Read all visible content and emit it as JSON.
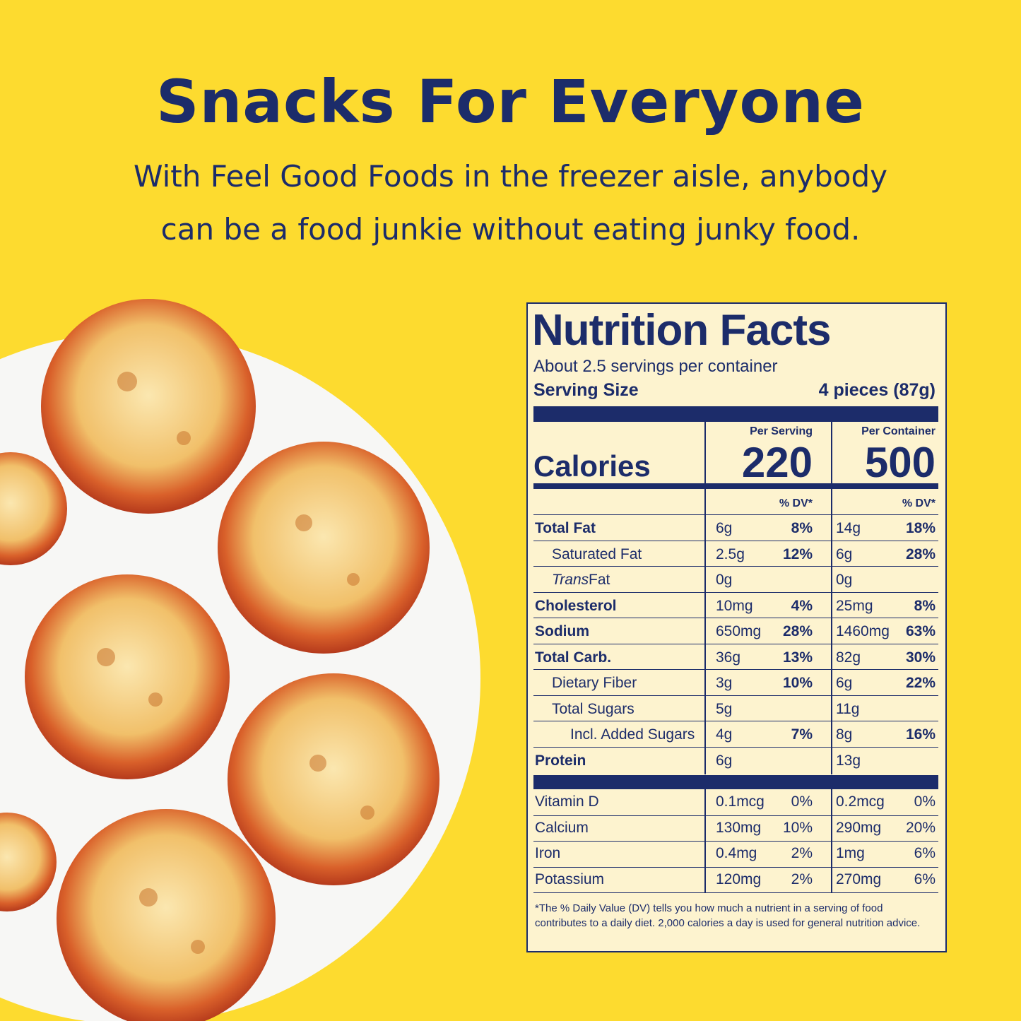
{
  "header": {
    "title": "Snacks For Everyone",
    "subtitle_lines": [
      "With Feel Good Foods in the freezer aisle, anybody",
      "can be a food junkie without eating junky food."
    ]
  },
  "nutrition": {
    "title": "Nutrition Facts",
    "servings": "About 2.5 servings per container",
    "serving_size_label": "Serving Size",
    "serving_size": "4 pieces (87g)",
    "column_headers": [
      "Per Serving",
      "Per Container"
    ],
    "calories_label": "Calories",
    "calories": [
      "220",
      "500"
    ],
    "dv_headers": [
      "% DV*",
      "% DV*"
    ],
    "rows": [
      {
        "name": "Total Fat",
        "style": "bold",
        "values": [
          "6g",
          "8%",
          "14g",
          "18%"
        ]
      },
      {
        "name": "Saturated Fat",
        "style": "sub",
        "values": [
          "2.5g",
          "12%",
          "6g",
          "28%"
        ]
      },
      {
        "name_italic": "Trans",
        "name": " Fat",
        "style": "sub",
        "values": [
          "0g",
          null,
          "0g",
          null
        ]
      },
      {
        "name": "Cholesterol",
        "style": "bold",
        "values": [
          "10mg",
          "4%",
          "25mg",
          "8%"
        ]
      },
      {
        "name": "Sodium",
        "style": "bold",
        "values": [
          "650mg",
          "28%",
          "1460mg",
          "63%"
        ]
      },
      {
        "name": "Total Carb.",
        "style": "bold",
        "values": [
          "36g",
          "13%",
          "82g",
          "30%"
        ]
      },
      {
        "name": "Dietary Fiber",
        "style": "sub",
        "values": [
          "3g",
          "10%",
          "6g",
          "22%"
        ]
      },
      {
        "name": "Total Sugars",
        "style": "sub",
        "values": [
          "5g",
          null,
          "11g",
          null
        ]
      },
      {
        "name": "Incl. Added Sugars",
        "style": "subsub",
        "values": [
          "4g",
          "7%",
          "8g",
          "16%"
        ]
      },
      {
        "name": "Protein",
        "style": "bold",
        "values": [
          "6g",
          null,
          "13g",
          null
        ]
      }
    ],
    "vitamins": [
      {
        "name": "Vitamin D",
        "values": [
          "0.1mcg",
          "0%",
          "0.2mcg",
          "0%"
        ]
      },
      {
        "name": "Calcium",
        "values": [
          "130mg",
          "10%",
          "290mg",
          "20%"
        ]
      },
      {
        "name": "Iron",
        "values": [
          "0.4mg",
          "2%",
          "1mg",
          "6%"
        ]
      },
      {
        "name": "Potassium",
        "values": [
          "120mg",
          "2%",
          "270mg",
          "6%"
        ]
      }
    ],
    "footnote": "*The % Daily Value (DV) tells you how much a nutrient in a serving of food contributes to a daily diet. 2,000 calories a day is used for general nutrition advice."
  }
}
